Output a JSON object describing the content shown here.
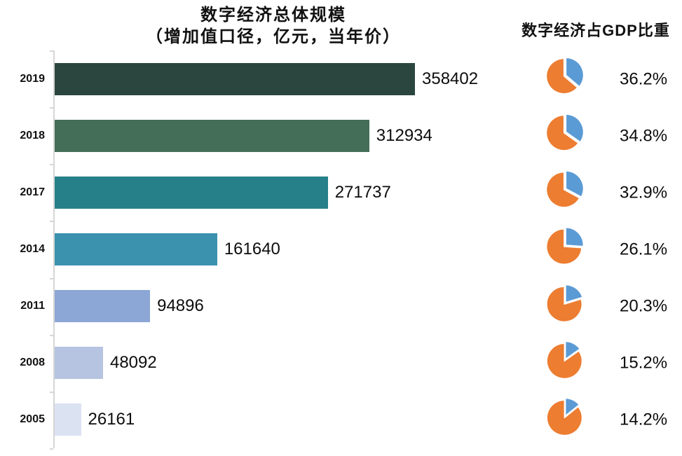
{
  "titles": {
    "bar_line1": "数字经济总体规模",
    "bar_line2": "（增加值口径，亿元，当年价）",
    "pie": "数字经济占GDP比重"
  },
  "chart_data": [
    {
      "type": "bar",
      "orientation": "horizontal",
      "title": "数字经济总体规模（增加值口径，亿元，当年价）",
      "categories": [
        "2019",
        "2018",
        "2017",
        "2014",
        "2011",
        "2008",
        "2005"
      ],
      "values": [
        358402,
        312934,
        271737,
        161640,
        94896,
        48092,
        26161
      ],
      "value_labels": [
        "358402",
        "312934",
        "271737",
        "161640",
        "94896",
        "48092",
        "26161"
      ],
      "bar_colors": [
        "#2b463f",
        "#446e58",
        "#26808a",
        "#3a92ae",
        "#8ca6d5",
        "#b6c4e1",
        "#dbe2f2"
      ],
      "xlim": [
        0,
        358402
      ],
      "ylabel": "",
      "xlabel": "",
      "grid": false,
      "axis_color": "#d6d6d6"
    },
    {
      "type": "pie",
      "title": "数字经济占GDP比重",
      "categories": [
        "2019",
        "2018",
        "2017",
        "2014",
        "2011",
        "2008",
        "2005"
      ],
      "values": [
        36.2,
        34.8,
        32.9,
        26.1,
        20.3,
        15.2,
        14.2
      ],
      "value_labels": [
        "36.2%",
        "34.8%",
        "32.9%",
        "26.1%",
        "20.3%",
        "15.2%",
        "14.2%"
      ],
      "slice_colors": {
        "digital_share": "#5b9bd5",
        "remainder": "#ed7d31"
      },
      "legend": "none"
    }
  ]
}
